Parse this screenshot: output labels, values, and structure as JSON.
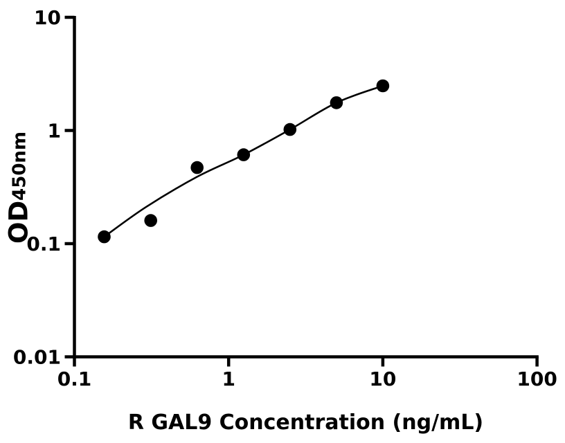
{
  "chart_data": {
    "type": "scatter",
    "title": "",
    "xlabel": "R GAL9 Concentration (ng/mL)",
    "ylabel_main": "OD",
    "ylabel_sub": "450nm",
    "x_scale": "log",
    "y_scale": "log",
    "xlim": [
      0.1,
      100
    ],
    "ylim": [
      0.01,
      10
    ],
    "x_ticks": [
      "0.1",
      "1",
      "10",
      "100"
    ],
    "y_ticks": [
      "0.01",
      "0.1",
      "1",
      "10"
    ],
    "grid": false,
    "legend": "none",
    "background_color": "#ffffff",
    "foreground_color": "#000000",
    "series": [
      {
        "name": "standard-curve-points",
        "marker": "filled-circle",
        "color": "#000000",
        "points": [
          {
            "x": 0.156,
            "y": 0.115
          },
          {
            "x": 0.3125,
            "y": 0.16
          },
          {
            "x": 0.625,
            "y": 0.47
          },
          {
            "x": 1.25,
            "y": 0.61
          },
          {
            "x": 2.5,
            "y": 1.02
          },
          {
            "x": 5,
            "y": 1.76
          },
          {
            "x": 10,
            "y": 2.48
          }
        ]
      }
    ],
    "fit_curve": {
      "name": "four-parameter-fit",
      "color": "#000000",
      "points": [
        {
          "x": 0.156,
          "y": 0.115
        },
        {
          "x": 0.29,
          "y": 0.21
        },
        {
          "x": 0.625,
          "y": 0.39
        },
        {
          "x": 1.25,
          "y": 0.61
        },
        {
          "x": 2.5,
          "y": 1.02
        },
        {
          "x": 5,
          "y": 1.76
        },
        {
          "x": 10,
          "y": 2.48
        }
      ]
    }
  }
}
